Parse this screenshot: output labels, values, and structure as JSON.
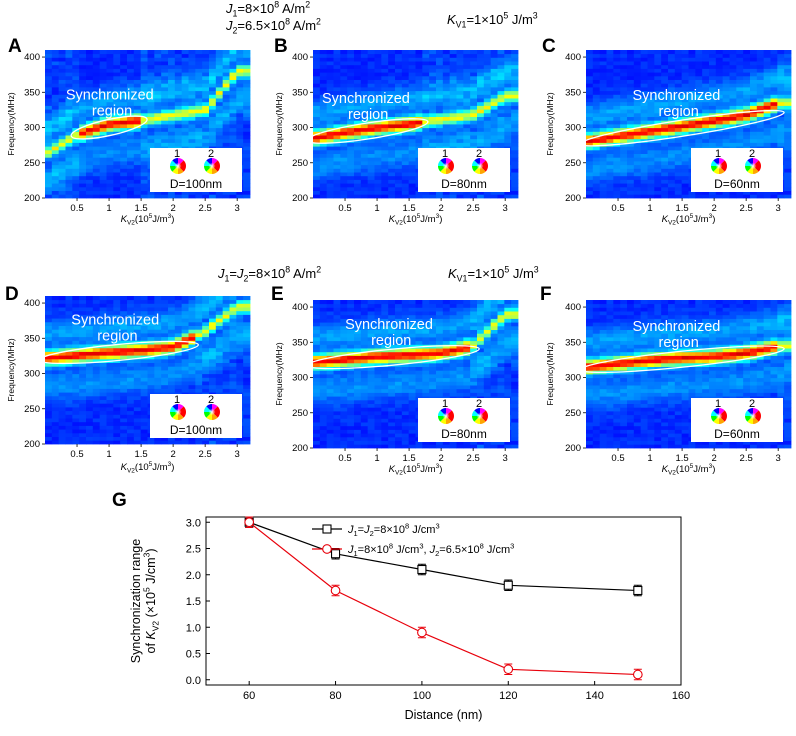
{
  "header_row1": {
    "left_line1_parts": [
      "J",
      "1",
      "=8×10",
      "8",
      " A/m",
      "2"
    ],
    "left_line2_parts": [
      "J",
      "2",
      "=6.5×10",
      "8",
      " A/m",
      "2"
    ],
    "right_parts": [
      "K",
      "V1",
      "=1×10",
      "5",
      " J/m",
      "3"
    ]
  },
  "header_row2": {
    "left_parts": [
      "J",
      "1",
      "=J",
      "2",
      "=8×10",
      "8",
      " A/m",
      "2"
    ],
    "right_parts": [
      "K",
      "V1",
      "=1×10",
      "5",
      " J/m",
      "3"
    ]
  },
  "heatmap_common": {
    "ylabel": "Frequency(MHz)",
    "xlabel_parts": [
      "K",
      "V2",
      "(10",
      "5",
      "J/m",
      "3",
      ")"
    ],
    "xticks": [
      0.5,
      1,
      1.5,
      2,
      2.5,
      3
    ],
    "yticks": [
      200,
      250,
      300,
      350,
      400
    ],
    "region_label_line1": "Synchronized",
    "region_label_line2": "region",
    "inset_labels": [
      "1",
      "2"
    ]
  },
  "chart_data": [
    {
      "panel": "A",
      "type": "heatmap",
      "title": "A",
      "distance_label": "D=100nm",
      "xlim": [
        0,
        3.2
      ],
      "ylim": [
        200,
        410
      ],
      "xlabel": "KV2(10^5 J/m^3)",
      "ylabel": "Frequency(MHz)",
      "ridge": {
        "x": [
          0.0,
          0.5,
          1.0,
          1.5,
          2.0,
          2.5,
          3.0
        ],
        "y": [
          262,
          290,
          305,
          310,
          318,
          325,
          380
        ]
      },
      "sync_region": {
        "x_from": 0.5,
        "x_to": 1.5,
        "freq_from": 290,
        "freq_to": 310
      }
    },
    {
      "panel": "B",
      "type": "heatmap",
      "title": "B",
      "distance_label": "D=80nm",
      "xlim": [
        0,
        3.2
      ],
      "ylim": [
        200,
        410
      ],
      "xlabel": "KV2(10^5 J/m^3)",
      "ylabel": "Frequency(MHz)",
      "ridge": {
        "x": [
          0.0,
          0.5,
          1.0,
          1.5,
          2.0,
          2.5,
          3.0
        ],
        "y": [
          285,
          293,
          300,
          305,
          312,
          318,
          345
        ]
      },
      "sync_region": {
        "x_from": 0.0,
        "x_to": 1.7,
        "freq_from": 283,
        "freq_to": 307
      }
    },
    {
      "panel": "C",
      "type": "heatmap",
      "title": "C",
      "distance_label": "D=60nm",
      "xlim": [
        0,
        3.2
      ],
      "ylim": [
        200,
        410
      ],
      "xlabel": "KV2(10^5 J/m^3)",
      "ylabel": "Frequency(MHz)",
      "ridge": {
        "x": [
          0.0,
          0.5,
          1.0,
          1.5,
          2.0,
          2.5,
          3.0
        ],
        "y": [
          280,
          288,
          295,
          302,
          310,
          318,
          335
        ]
      },
      "sync_region": {
        "x_from": 0.0,
        "x_to": 3.0,
        "freq_from": 278,
        "freq_to": 320
      }
    },
    {
      "panel": "D",
      "type": "heatmap",
      "title": "D",
      "distance_label": "D=100nm",
      "xlim": [
        0,
        3.2
      ],
      "ylim": [
        200,
        410
      ],
      "xlabel": "KV2(10^5 J/m^3)",
      "ylabel": "Frequency(MHz)",
      "ridge": {
        "x": [
          0.0,
          0.5,
          1.0,
          1.5,
          2.0,
          2.5,
          3.0
        ],
        "y": [
          322,
          326,
          330,
          333,
          338,
          360,
          395
        ]
      },
      "sync_region": {
        "x_from": 0.0,
        "x_to": 2.3,
        "freq_from": 320,
        "freq_to": 340
      }
    },
    {
      "panel": "E",
      "type": "heatmap",
      "title": "E",
      "distance_label": "D=80nm",
      "xlim": [
        0,
        3.2
      ],
      "ylim": [
        200,
        410
      ],
      "xlabel": "KV2(10^5 J/m^3)",
      "ylabel": "Frequency(MHz)",
      "ridge": {
        "x": [
          0.0,
          0.5,
          1.0,
          1.5,
          2.0,
          2.5,
          3.0
        ],
        "y": [
          322,
          326,
          330,
          332,
          335,
          345,
          390
        ]
      },
      "sync_region": {
        "x_from": 0.0,
        "x_to": 2.5,
        "freq_from": 318,
        "freq_to": 340
      }
    },
    {
      "panel": "F",
      "type": "heatmap",
      "title": "F",
      "distance_label": "D=60nm",
      "xlim": [
        0,
        3.2
      ],
      "ylim": [
        200,
        410
      ],
      "xlabel": "KV2(10^5 J/m^3)",
      "ylabel": "Frequency(MHz)",
      "ridge": {
        "x": [
          0.0,
          0.5,
          1.0,
          1.5,
          2.0,
          2.5,
          3.0
        ],
        "y": [
          315,
          320,
          325,
          328,
          330,
          335,
          345
        ]
      },
      "sync_region": {
        "x_from": 0.0,
        "x_to": 3.0,
        "freq_from": 312,
        "freq_to": 340
      }
    },
    {
      "panel": "G",
      "type": "line",
      "title": "G",
      "xlabel": "Distance (nm)",
      "ylabel_line1": "Synchronization range",
      "ylabel_line2_parts": [
        "of K",
        "V2",
        " (×10",
        "5",
        " J/cm",
        "3",
        ")"
      ],
      "xlim": [
        50,
        160
      ],
      "ylim": [
        -0.1,
        3.1
      ],
      "xticks": [
        60,
        80,
        100,
        120,
        140,
        160
      ],
      "yticks": [
        0.0,
        0.5,
        1.0,
        1.5,
        2.0,
        2.5,
        3.0
      ],
      "series": [
        {
          "name": "J1=J2=8×10^8 J/cm^3",
          "legend_parts": [
            "J",
            "1",
            "=J",
            "2",
            "=8×10",
            "8",
            " J/cm",
            "3"
          ],
          "color": "#000000",
          "marker": "square",
          "x": [
            60,
            80,
            100,
            120,
            150
          ],
          "values": [
            3.0,
            2.4,
            2.1,
            1.8,
            1.7
          ],
          "err": [
            0.1,
            0.1,
            0.1,
            0.1,
            0.1
          ]
        },
        {
          "name": "J1=8×10^8 J/cm^3, J2=6.5×10^8 J/cm^3",
          "legend_parts": [
            "J",
            "1",
            "=8×10",
            "8",
            " J/cm",
            "3",
            ", J",
            "2",
            "=6.5×10",
            "8",
            " J/cm",
            "3"
          ],
          "color": "#e8000b",
          "marker": "circle",
          "x": [
            60,
            80,
            100,
            120,
            150
          ],
          "values": [
            3.0,
            1.7,
            0.9,
            0.2,
            0.1
          ],
          "err": [
            0.1,
            0.1,
            0.1,
            0.1,
            0.1
          ]
        }
      ]
    }
  ]
}
